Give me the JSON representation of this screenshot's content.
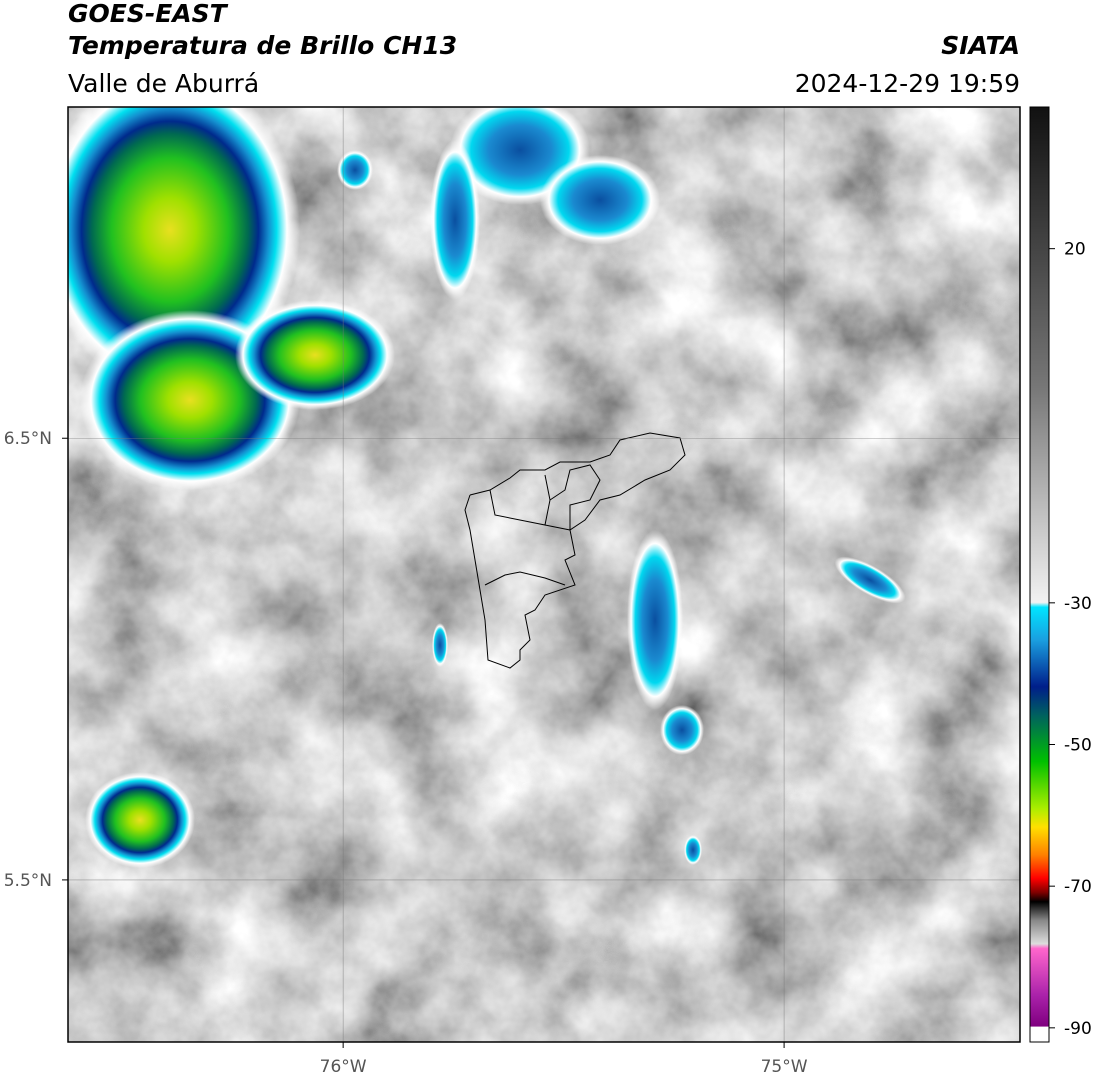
{
  "header": {
    "title": "GOES-EAST",
    "subtitle": "Temperatura de Brillo CH13",
    "agency": "SIATA",
    "region": "Valle de Aburrá",
    "datetime": "2024-12-29 19:59"
  },
  "map": {
    "lonlim": [
      -76.624,
      -74.465
    ],
    "latlim": [
      5.133,
      7.25
    ],
    "lonticks": [
      {
        "value": -76,
        "label": "76°W"
      },
      {
        "value": -75,
        "label": "75°W"
      }
    ],
    "latticks": [
      {
        "value": 6.5,
        "label": "6.5°N"
      },
      {
        "value": 5.5,
        "label": "5.5°N"
      }
    ],
    "grid": true
  },
  "colorbar": {
    "lim": [
      -92,
      40
    ],
    "ticks": [
      20,
      -30,
      -50,
      -70,
      -90
    ]
  }
}
